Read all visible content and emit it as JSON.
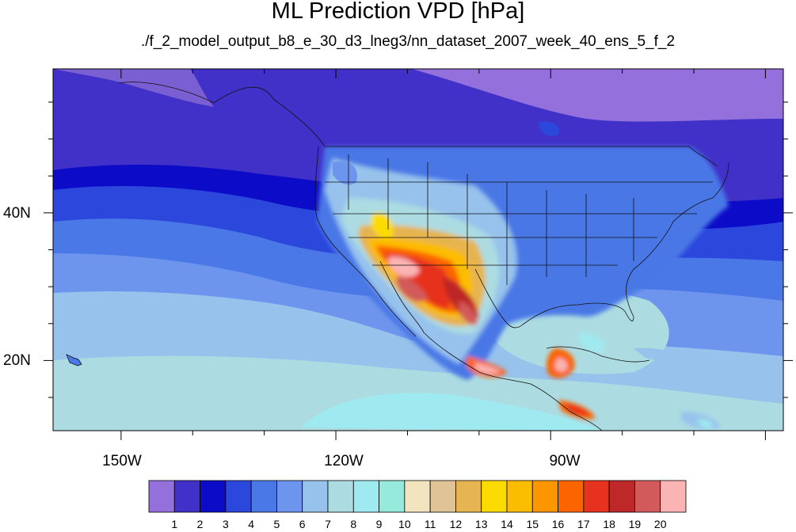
{
  "title": "ML Prediction VPD [hPa]",
  "subtitle": "./f_2_model_output_b8_e_30_d3_lneg3/nn_dataset_2007_week_40_ens_5_f_2",
  "axes": {
    "lat_ticks": [
      {
        "value": 40,
        "label": "40N"
      },
      {
        "value": 20,
        "label": "20N"
      }
    ],
    "lon_ticks": [
      {
        "value": -150,
        "label": "150W"
      },
      {
        "value": -120,
        "label": "120W"
      },
      {
        "value": -90,
        "label": "90W"
      }
    ],
    "lon_range": [
      -159.5,
      -57.5
    ],
    "lat_range": [
      10.5,
      59.5
    ]
  },
  "colorbar": {
    "labels": [
      "1",
      "2",
      "3",
      "4",
      "5",
      "6",
      "7",
      "8",
      "9",
      "10",
      "11",
      "12",
      "13",
      "14",
      "15",
      "16",
      "17",
      "18",
      "19",
      "20"
    ],
    "colors": [
      "#9370DB",
      "#4131C8",
      "#0C0CC8",
      "#2B47DC",
      "#4A78E6",
      "#6E95EE",
      "#96C2EC",
      "#ACDCE2",
      "#9EEAF0",
      "#96EADC",
      "#F2E4BE",
      "#E0C396",
      "#E6B450",
      "#FCDC00",
      "#FCBC00",
      "#FC9600",
      "#FC6400",
      "#E6321E",
      "#BE2828",
      "#D25A5A",
      "#FAB4B4"
    ]
  }
}
